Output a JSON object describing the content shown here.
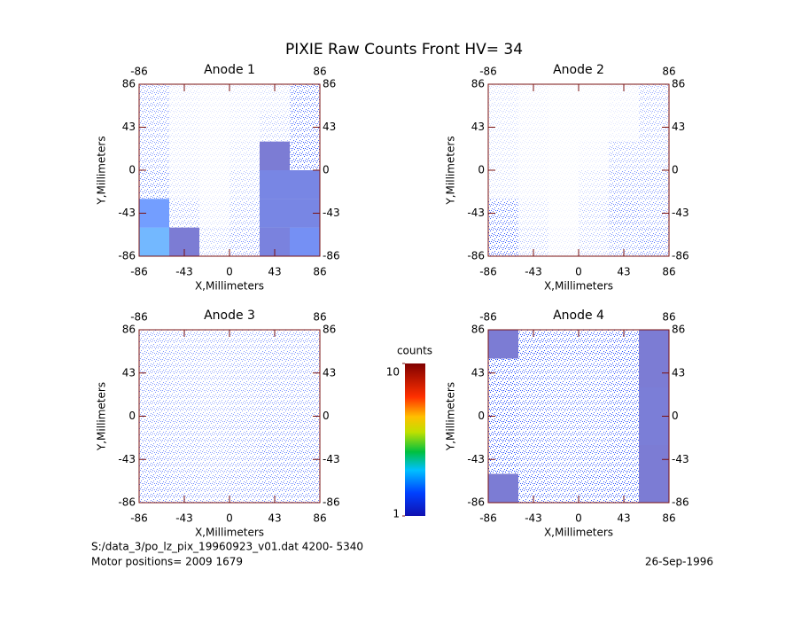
{
  "title": "PIXIE Raw Counts Front HV= 34",
  "chart_data": [
    {
      "type": "heatmap",
      "title": "Anode 1",
      "x_label": "X,Millimeters",
      "y_label": "Y,Millimeters",
      "xlim": [
        -86,
        86
      ],
      "ylim": [
        -86,
        86
      ],
      "xticks": [
        -86,
        -43,
        0,
        43,
        86
      ],
      "yticks": [
        -86,
        -43,
        0,
        43,
        86
      ],
      "z": [
        [
          0.5,
          0.15,
          0.1,
          0.15,
          0.2,
          0.7
        ],
        [
          0.5,
          0.15,
          0.1,
          0.15,
          0.3,
          0.7
        ],
        [
          0.5,
          0.15,
          0.1,
          0.2,
          1,
          0.8
        ],
        [
          0.6,
          0.2,
          0.1,
          0.3,
          1.5,
          1.5
        ],
        [
          2.5,
          0.4,
          0.15,
          0.4,
          1.5,
          1.5
        ],
        [
          3,
          1,
          0.3,
          0.5,
          1.3,
          2
        ]
      ]
    },
    {
      "type": "heatmap",
      "title": "Anode 2",
      "x_label": "X,Millimeters",
      "y_label": "Y,Millimeters",
      "xlim": [
        -86,
        86
      ],
      "ylim": [
        -86,
        86
      ],
      "xticks": [
        -86,
        -43,
        0,
        43,
        86
      ],
      "yticks": [
        -86,
        -43,
        0,
        43,
        86
      ],
      "z": [
        [
          0.2,
          0.1,
          0.05,
          0.05,
          0.1,
          0.4
        ],
        [
          0.2,
          0.1,
          0.05,
          0.05,
          0.1,
          0.4
        ],
        [
          0.2,
          0.1,
          0.05,
          0.1,
          0.4,
          0.4
        ],
        [
          0.2,
          0.1,
          0.05,
          0.2,
          0.5,
          0.5
        ],
        [
          0.7,
          0.2,
          0.05,
          0.3,
          0.6,
          0.5
        ],
        [
          0.8,
          0.3,
          0.1,
          0.3,
          0.5,
          0.6
        ]
      ]
    },
    {
      "type": "heatmap",
      "title": "Anode 3",
      "x_label": "X,Millimeters",
      "y_label": "Y,Millimeters",
      "xlim": [
        -86,
        86
      ],
      "ylim": [
        -86,
        86
      ],
      "xticks": [
        -86,
        -43,
        0,
        43,
        86
      ],
      "yticks": [
        -86,
        -43,
        0,
        43,
        86
      ],
      "z": [
        [
          0.5,
          0.45,
          0.45,
          0.45,
          0.5,
          0.5
        ],
        [
          0.5,
          0.45,
          0.4,
          0.45,
          0.5,
          0.5
        ],
        [
          0.5,
          0.45,
          0.4,
          0.45,
          0.5,
          0.5
        ],
        [
          0.5,
          0.5,
          0.45,
          0.5,
          0.55,
          0.55
        ],
        [
          0.55,
          0.5,
          0.45,
          0.5,
          0.6,
          0.6
        ],
        [
          0.6,
          0.55,
          0.5,
          0.55,
          0.6,
          0.6
        ]
      ]
    },
    {
      "type": "heatmap",
      "title": "Anode 4",
      "x_label": "X,Millimeters",
      "y_label": "Y,Millimeters",
      "xlim": [
        -86,
        86
      ],
      "ylim": [
        -86,
        86
      ],
      "xticks": [
        -86,
        -43,
        0,
        43,
        86
      ],
      "yticks": [
        -86,
        -43,
        0,
        43,
        86
      ],
      "z": [
        [
          1,
          0.85,
          0.8,
          0.8,
          0.85,
          1
        ],
        [
          0.9,
          0.75,
          0.7,
          0.7,
          0.8,
          1
        ],
        [
          0.9,
          0.75,
          0.7,
          0.7,
          0.8,
          1.1
        ],
        [
          0.9,
          0.75,
          0.7,
          0.7,
          0.8,
          1.1
        ],
        [
          0.9,
          0.75,
          0.7,
          0.75,
          0.8,
          1
        ],
        [
          1,
          0.8,
          0.75,
          0.8,
          0.85,
          1
        ]
      ]
    }
  ],
  "colorbar": {
    "label": "counts",
    "lim": [
      1,
      10
    ],
    "ticks": [
      1,
      10
    ]
  },
  "footer": {
    "file": "S:/data_3/po_lz_pix_19960923_v01.dat   4200- 5340",
    "motor": "Motor positions= 2009 1679",
    "date": "26-Sep-1996"
  }
}
